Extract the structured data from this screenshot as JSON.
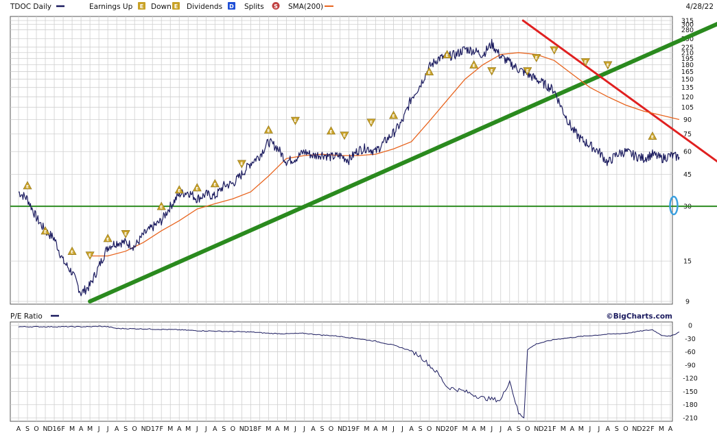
{
  "header": {
    "ticker_label": "TDOC Daily",
    "earnings_up_label": "Earnings Up",
    "down_label": "Down",
    "dividends_label": "Dividends",
    "splits_label": "Splits",
    "sma_label": "SMA(200)",
    "date": "4/28/22",
    "earnings_glyph": "E",
    "dividends_glyph": "D",
    "splits_glyph": "S"
  },
  "colors": {
    "price": "#1a1a5e",
    "sma": "#e8641e",
    "earnings": "#c9a227",
    "dividends": "#1f4fd6",
    "splits": "#c04040",
    "trend_green": "#2a8a1e",
    "trend_red": "#e02020",
    "circle": "#3aa0e0"
  },
  "chart_data": [
    {
      "type": "line",
      "title": "",
      "scale": "log",
      "ylim": [
        9,
        315
      ],
      "y_ticks": [
        315,
        300,
        280,
        250,
        225,
        210,
        195,
        180,
        165,
        150,
        135,
        120,
        105,
        90,
        75,
        60,
        45,
        30,
        15,
        9
      ],
      "x_tick_labels": [
        "A",
        "S",
        "O",
        "N",
        "D16",
        "F",
        "M",
        "A",
        "M",
        "J",
        "J",
        "A",
        "S",
        "O",
        "N",
        "D17",
        "F",
        "M",
        "A",
        "M",
        "J",
        "J",
        "A",
        "S",
        "O",
        "N",
        "D18",
        "F",
        "M",
        "A",
        "M",
        "J",
        "J",
        "A",
        "S",
        "O",
        "N",
        "D19",
        "F",
        "M",
        "A",
        "M",
        "J",
        "J",
        "A",
        "S",
        "O",
        "N",
        "D20",
        "F",
        "M",
        "A",
        "M",
        "J",
        "J",
        "A",
        "S",
        "O",
        "N",
        "D21",
        "F",
        "M",
        "A",
        "M",
        "J",
        "J",
        "A",
        "S",
        "O",
        "N",
        "D22",
        "F",
        "M",
        "A"
      ],
      "series": [
        {
          "name": "TDOC Daily",
          "x": [
            0,
            1,
            2,
            3,
            4,
            5,
            6,
            7,
            8,
            9,
            10,
            11,
            12,
            13,
            14,
            15,
            16,
            17,
            18,
            19,
            20,
            21,
            22,
            23,
            24,
            25,
            26,
            27,
            28,
            29,
            30,
            31,
            32,
            33,
            34,
            35,
            36,
            37,
            38,
            39,
            40,
            41,
            42,
            43,
            44,
            45,
            46,
            47,
            48,
            49,
            50,
            51,
            52,
            53,
            54,
            55,
            56,
            57,
            58,
            59,
            60,
            61,
            62,
            63,
            64,
            65,
            66,
            67,
            68,
            69,
            70,
            71,
            72,
            73,
            74
          ],
          "values": [
            36,
            33,
            26,
            22,
            20,
            15,
            13,
            10,
            11,
            14,
            18,
            19,
            19,
            18,
            21,
            23,
            25,
            30,
            35,
            36,
            33,
            35,
            34,
            39,
            40,
            45,
            52,
            57,
            68,
            63,
            53,
            55,
            60,
            57,
            58,
            56,
            57,
            54,
            61,
            63,
            60,
            68,
            76,
            88,
            118,
            140,
            175,
            195,
            200,
            205,
            220,
            215,
            205,
            235,
            200,
            185,
            170,
            160,
            150,
            140,
            130,
            100,
            80,
            70,
            65,
            60,
            52,
            58,
            60,
            57,
            55,
            58,
            55,
            57,
            56
          ]
        },
        {
          "name": "SMA(200)",
          "x": [
            8,
            10,
            12,
            14,
            16,
            18,
            20,
            22,
            24,
            26,
            28,
            30,
            32,
            34,
            36,
            38,
            40,
            42,
            44,
            46,
            48,
            50,
            52,
            54,
            56,
            58,
            60,
            62,
            64,
            66,
            68,
            70,
            72,
            74
          ],
          "values": [
            16,
            16,
            17,
            19,
            22,
            25,
            29,
            31,
            33,
            36,
            44,
            55,
            57,
            58,
            57,
            57,
            58,
            62,
            68,
            88,
            115,
            150,
            180,
            205,
            210,
            205,
            190,
            160,
            135,
            120,
            108,
            100,
            95,
            90
          ]
        }
      ],
      "trendlines": [
        {
          "x": [
            8,
            74.5
          ],
          "values": [
            9,
            250
          ]
        },
        {
          "x": [
            56.5,
            74.5
          ],
          "values": [
            315,
            72
          ]
        },
        {
          "x": [
            0,
            74.5
          ],
          "values": [
            30,
            30
          ]
        }
      ],
      "earnings_events": [
        {
          "x": 1,
          "value": 39,
          "type": "up"
        },
        {
          "x": 3,
          "value": 22,
          "type": "up"
        },
        {
          "x": 6,
          "value": 17,
          "type": "up"
        },
        {
          "x": 8,
          "value": 16,
          "type": "down"
        },
        {
          "x": 10,
          "value": 20,
          "type": "up"
        },
        {
          "x": 12,
          "value": 21,
          "type": "down"
        },
        {
          "x": 16,
          "value": 30,
          "type": "up"
        },
        {
          "x": 18,
          "value": 37,
          "type": "up"
        },
        {
          "x": 20,
          "value": 38,
          "type": "up"
        },
        {
          "x": 22,
          "value": 40,
          "type": "up"
        },
        {
          "x": 25,
          "value": 51,
          "type": "down"
        },
        {
          "x": 28,
          "value": 79,
          "type": "up"
        },
        {
          "x": 31,
          "value": 88,
          "type": "down"
        },
        {
          "x": 35,
          "value": 78,
          "type": "up"
        },
        {
          "x": 36.5,
          "value": 73,
          "type": "down"
        },
        {
          "x": 39.5,
          "value": 86,
          "type": "down"
        },
        {
          "x": 42,
          "value": 95,
          "type": "up"
        },
        {
          "x": 46,
          "value": 165,
          "type": "up"
        },
        {
          "x": 48,
          "value": 205,
          "type": "up"
        },
        {
          "x": 51,
          "value": 180,
          "type": "up"
        },
        {
          "x": 53,
          "value": 165,
          "type": "down"
        },
        {
          "x": 57,
          "value": 165,
          "type": "down"
        },
        {
          "x": 58,
          "value": 195,
          "type": "down"
        },
        {
          "x": 60,
          "value": 215,
          "type": "down"
        },
        {
          "x": 63.5,
          "value": 185,
          "type": "down"
        },
        {
          "x": 66,
          "value": 178,
          "type": "down"
        },
        {
          "x": 71,
          "value": 73,
          "type": "up"
        }
      ]
    },
    {
      "type": "line",
      "title": "P/E Ratio",
      "ylim": [
        -210,
        0
      ],
      "y_ticks": [
        0,
        -30,
        -60,
        -90,
        -120,
        -150,
        -180,
        -210
      ],
      "series": [
        {
          "name": "P/E Ratio",
          "x": [
            0,
            8,
            9,
            10,
            11,
            14,
            18,
            20,
            24,
            26,
            28,
            30,
            32,
            34,
            35,
            36,
            38,
            40,
            42,
            44,
            45,
            46,
            47,
            48,
            50,
            52,
            54,
            55,
            56,
            56.6,
            57,
            58,
            60,
            63,
            66,
            68,
            70,
            71,
            72,
            73,
            74
          ],
          "values": [
            -3,
            -3,
            -2,
            -3,
            -7,
            -8,
            -10,
            -12,
            -14,
            -15,
            -18,
            -19,
            -18,
            -22,
            -23,
            -25,
            -30,
            -36,
            -45,
            -58,
            -70,
            -90,
            -110,
            -140,
            -150,
            -165,
            -170,
            -125,
            -200,
            -210,
            -55,
            -42,
            -32,
            -25,
            -20,
            -18,
            -12,
            -10,
            -22,
            -25,
            -15
          ]
        }
      ]
    }
  ],
  "footer": {
    "credit": "©BigCharts.com"
  }
}
